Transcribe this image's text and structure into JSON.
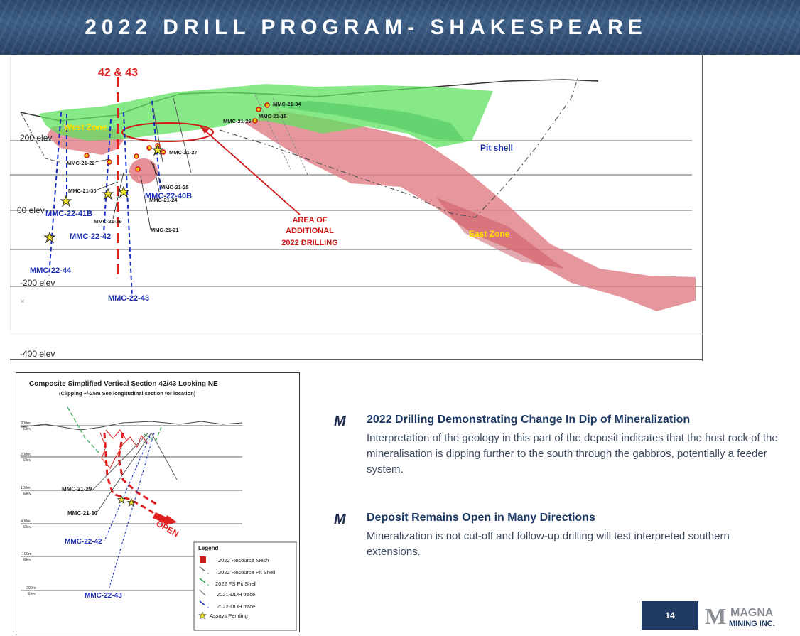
{
  "title": "2022 DRILL PROGRAM- SHAKESPEARE",
  "section": {
    "elev_labels": [
      "200 elev",
      "00 elev",
      "-200 elev",
      "-400 elev"
    ],
    "top_label": "42 & 43",
    "zones": {
      "west": "West Zone",
      "east": "East Zone",
      "pit": "Pit shell"
    },
    "area_callout": [
      "AREA OF",
      "ADDITIONAL",
      "2022 DRILLING"
    ],
    "holes_2021": [
      "MMC-21-34",
      "MMC-21-15",
      "MMC-21-26",
      "MMC-21-27",
      "MMC-21-22",
      "MMC-21-25",
      "MMC-21-30",
      "MMC-21-24",
      "MMC-21-29",
      "MMC-21-21"
    ],
    "holes_2022": [
      "MMC-22-40B",
      "MMC-22-41B",
      "MMC-22-42",
      "MMC-22-44",
      "MMC-22-43"
    ],
    "x_marker": "×"
  },
  "inset": {
    "title": "Composite Simplified Vertical  Section 42/43 Looking NE",
    "subtitle": "(Clipping +/-25m See longitudinal  section for location)",
    "elevs": [
      [
        "300m",
        "Elev"
      ],
      [
        "200m",
        "Elev"
      ],
      [
        "100m",
        "Elev"
      ],
      [
        "400m",
        "Elev"
      ],
      [
        "-100m",
        "Elev"
      ],
      [
        "-200m",
        "Elev"
      ]
    ],
    "holes": [
      "MMC-21-29",
      "MMC-21-30",
      "MMC-22-42",
      "MMC-22-43"
    ],
    "open_label": "OPEN",
    "legend": {
      "title": "Legend",
      "items": [
        "2022 Resource Mesh",
        "2022 Resource Pit Shell",
        "2022 FS Pit Shell",
        "2021-DDH trace",
        "2022-DDH trace",
        "Assays Pending"
      ]
    }
  },
  "bullets": [
    {
      "heading": "2022 Drilling Demonstrating Change In Dip of Mineralization",
      "body": "Interpretation of the geology in this part of the deposit indicates that the host rock of the mineralisation is dipping  further to the south through the gabbros, potentially a feeder system."
    },
    {
      "heading": "Deposit Remains Open in Many Directions",
      "body": "Mineralization is not cut-off and follow-up drilling will test interpreted southern extensions."
    }
  ],
  "bullet_marker": "M",
  "page_number": "14",
  "logo": {
    "mark": "M",
    "line1": "MAGNA",
    "line2": "MINING INC."
  },
  "colors": {
    "banner": "#2c4a6e",
    "heading": "#1d3a66",
    "red": "#e02020",
    "blue": "#1a2fbf",
    "green": "#5fe060",
    "pink": "#e07d85"
  }
}
